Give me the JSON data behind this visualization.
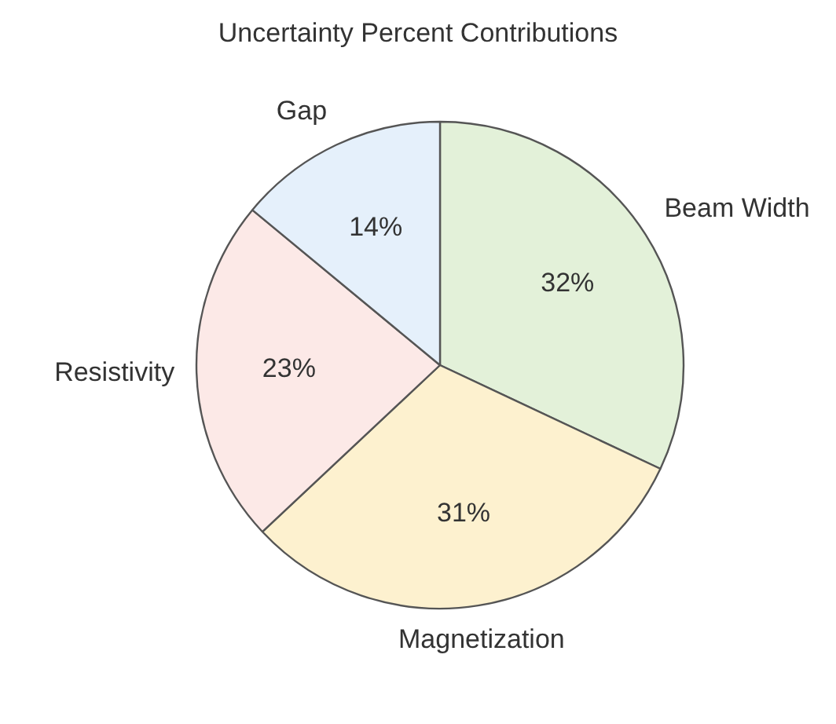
{
  "chart_data": {
    "type": "pie",
    "title": "Uncertainty Percent Contributions",
    "categories": [
      "Beam Width",
      "Magnetization",
      "Resistivity",
      "Gap"
    ],
    "values": [
      32,
      31,
      23,
      14
    ],
    "colors": [
      "#e3f1d9",
      "#fdf1cf",
      "#fce9e7",
      "#e5f0fb"
    ],
    "value_labels": [
      "32%",
      "31%",
      "23%",
      "14%"
    ],
    "legend": false
  }
}
